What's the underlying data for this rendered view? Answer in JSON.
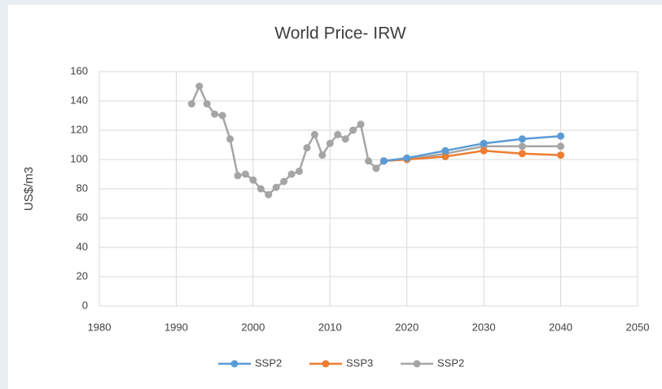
{
  "chart_data": {
    "type": "line",
    "title": "World Price- IRW",
    "y_label": "US$/m3",
    "xlim": [
      1980,
      2050
    ],
    "xticks": [
      1980,
      1990,
      2000,
      2010,
      2020,
      2030,
      2040,
      2050
    ],
    "ylim": [
      0,
      160
    ],
    "yticks": [
      0,
      20,
      40,
      60,
      80,
      100,
      120,
      140,
      160
    ],
    "grid": true,
    "series": [
      {
        "name": "SSP2",
        "color": "#5b9bd5",
        "x": [
          2017,
          2020,
          2025,
          2030,
          2035,
          2040
        ],
        "values": [
          99,
          101,
          106,
          111,
          114,
          116
        ]
      },
      {
        "name": "SSP3",
        "color": "#ed7d31",
        "x": [
          2017,
          2020,
          2025,
          2030,
          2035,
          2040
        ],
        "values": [
          99,
          100,
          102,
          106,
          104,
          103
        ]
      },
      {
        "name": "SSP2",
        "color": "#a5a5a5",
        "x": [
          1992,
          1993,
          1994,
          1995,
          1996,
          1997,
          1998,
          1999,
          2000,
          2001,
          2002,
          2003,
          2004,
          2005,
          2006,
          2007,
          2008,
          2009,
          2010,
          2011,
          2012,
          2013,
          2014,
          2015,
          2016,
          2017,
          2020,
          2025,
          2030,
          2035,
          2040
        ],
        "values": [
          138,
          150,
          138,
          131,
          130,
          114,
          89,
          90,
          86,
          80,
          76,
          81,
          85,
          90,
          92,
          108,
          117,
          103,
          111,
          117,
          114,
          120,
          124,
          99,
          94,
          99,
          100,
          104,
          109,
          109,
          109
        ]
      }
    ]
  }
}
